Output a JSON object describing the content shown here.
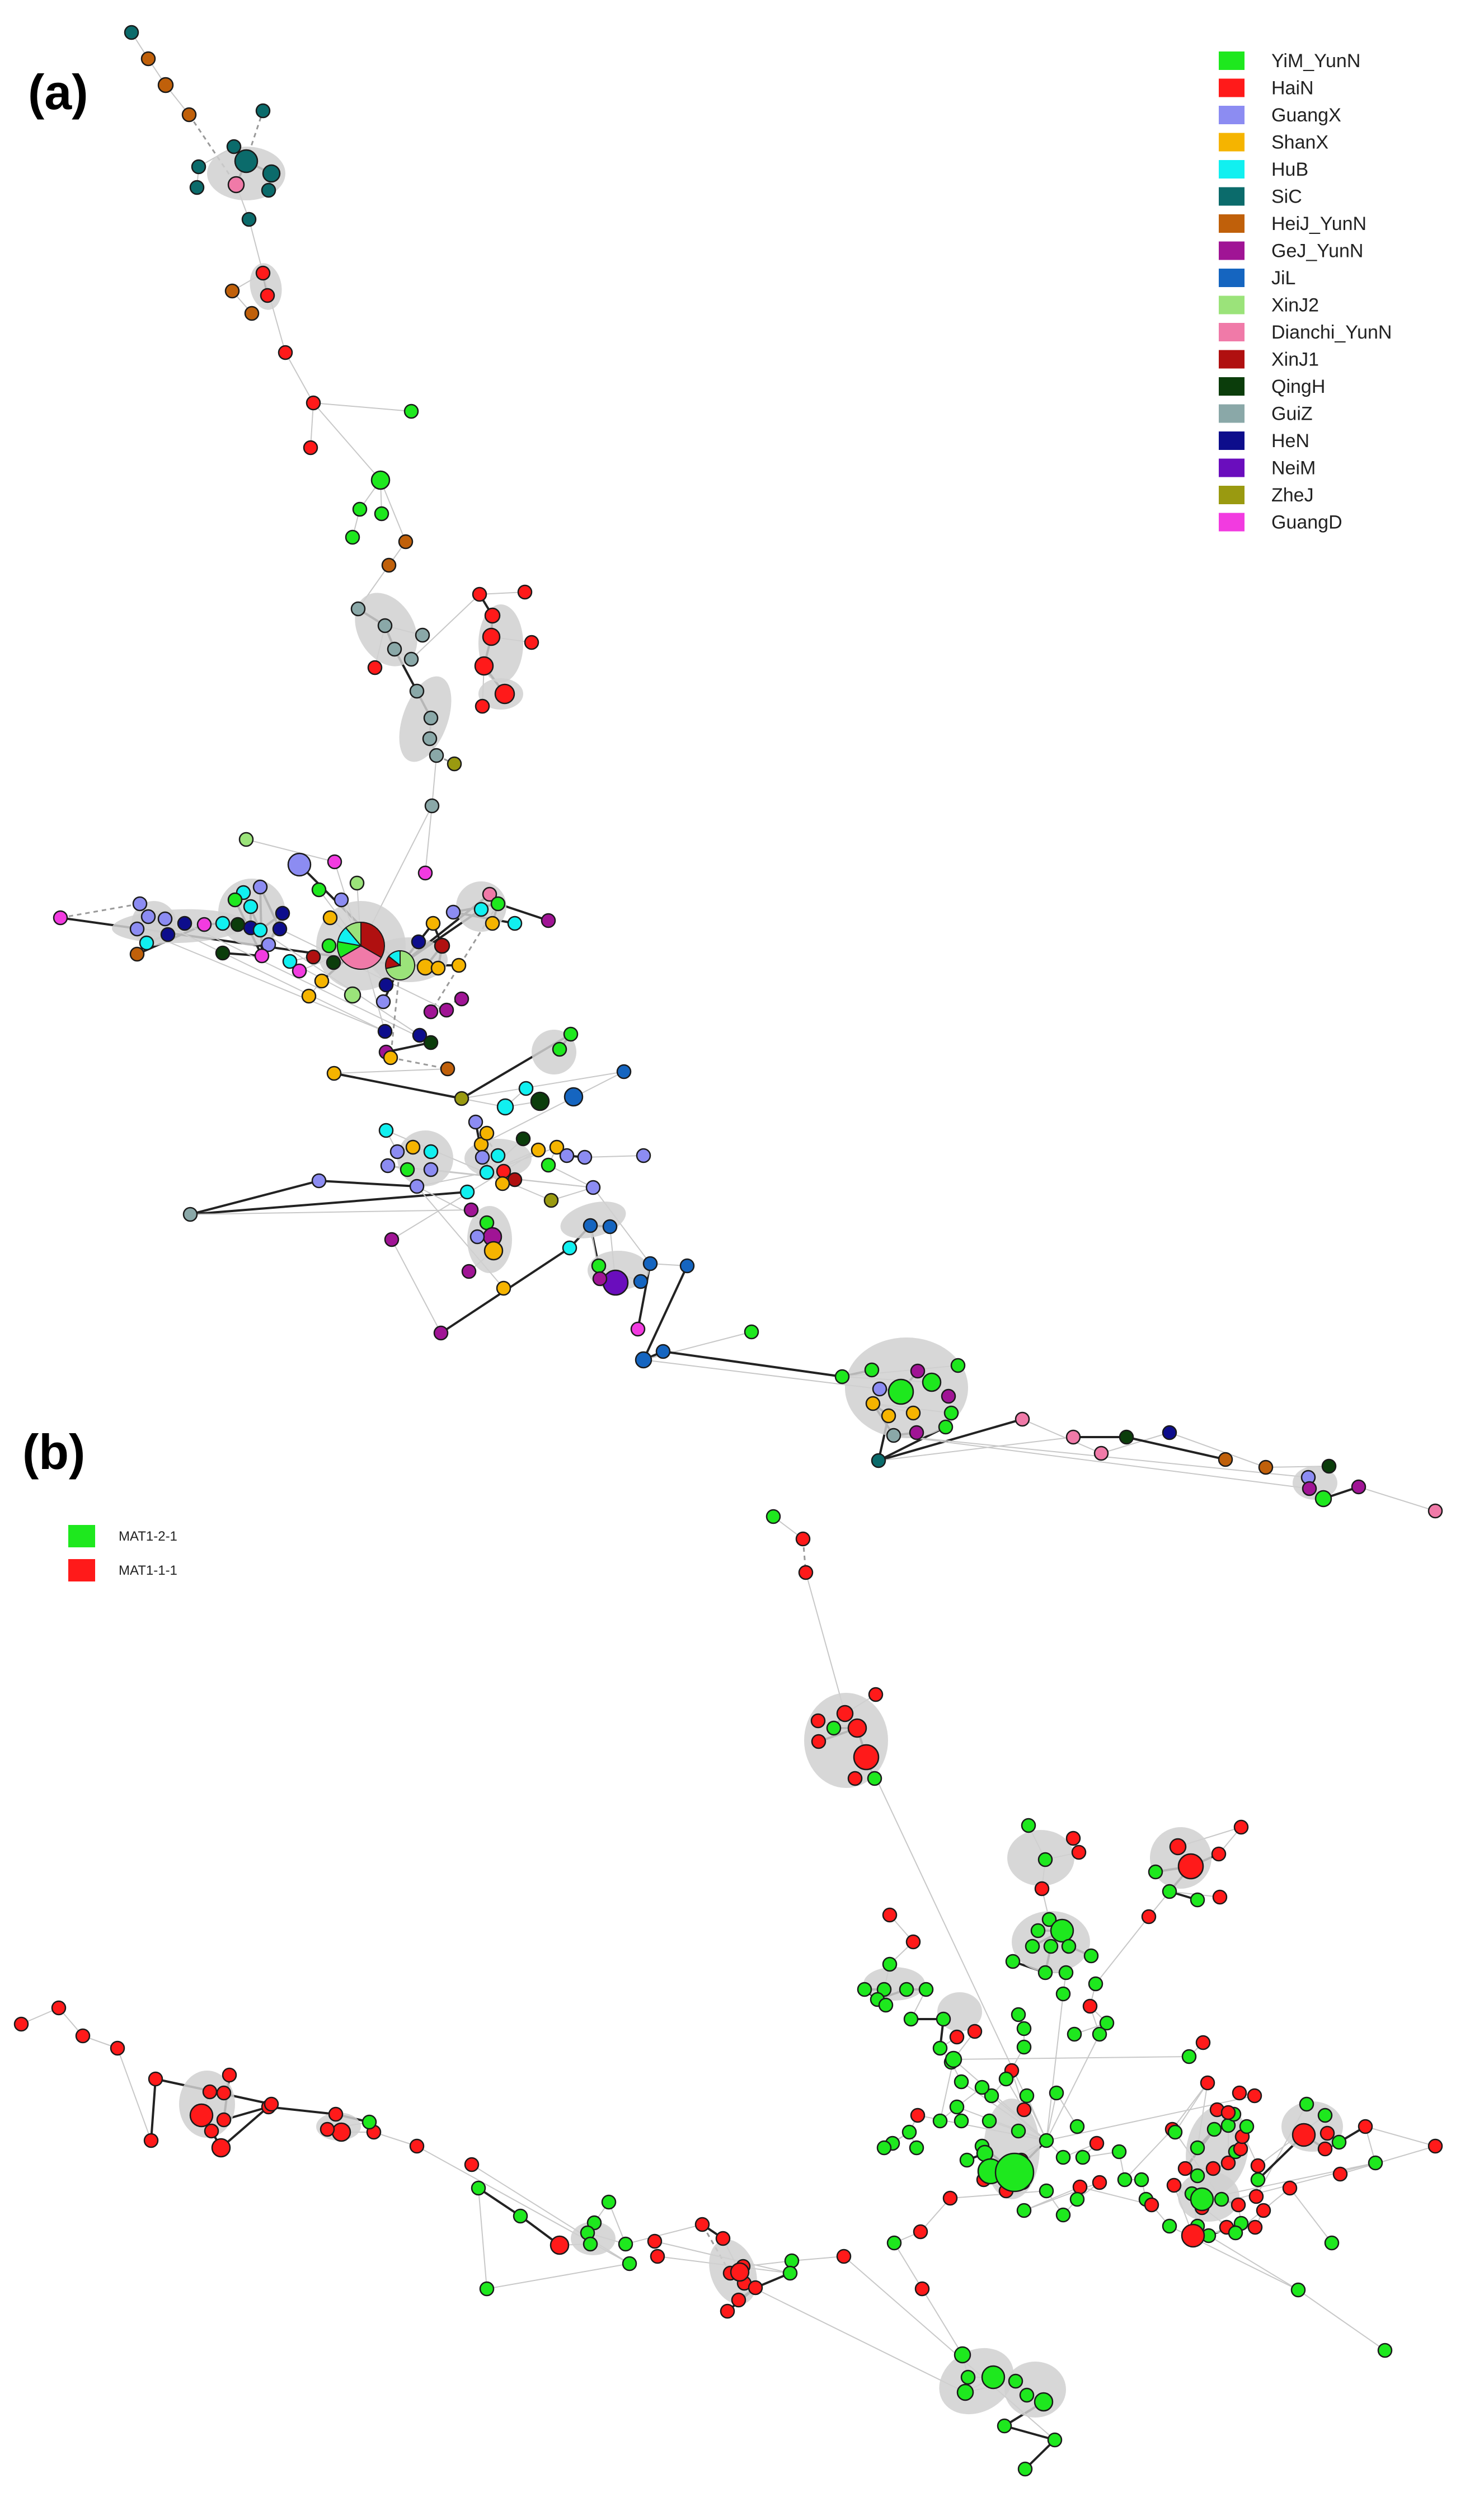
{
  "panel_a": {
    "label": "(a)",
    "legend": [
      {
        "name": "YiM_YunN",
        "color": "#1ee81e"
      },
      {
        "name": "HaiN",
        "color": "#ff1a1a"
      },
      {
        "name": "GuangX",
        "color": "#8c8cf2"
      },
      {
        "name": "ShanX",
        "color": "#f5b400"
      },
      {
        "name": "HuB",
        "color": "#11f0f0"
      },
      {
        "name": "SiC",
        "color": "#0b6b6b"
      },
      {
        "name": "HeiJ_YunN",
        "color": "#c0600a"
      },
      {
        "name": "GeJ_YunN",
        "color": "#a01495"
      },
      {
        "name": "JiL",
        "color": "#1565c0"
      },
      {
        "name": "XinJ2",
        "color": "#9be37a"
      },
      {
        "name": "Dianchi_YunN",
        "color": "#f07aa8"
      },
      {
        "name": "XinJ1",
        "color": "#b01010"
      },
      {
        "name": "QingH",
        "color": "#0b3d0b"
      },
      {
        "name": "GuiZ",
        "color": "#8aa8a8"
      },
      {
        "name": "HeN",
        "color": "#0d0d8c"
      },
      {
        "name": "NeiM",
        "color": "#6a0dbd"
      },
      {
        "name": "ZheJ",
        "color": "#9a9a10"
      },
      {
        "name": "GuangD",
        "color": "#f23be0"
      }
    ]
  },
  "panel_b": {
    "label": "(b)",
    "legend": [
      {
        "name": "MAT1-2-1",
        "color": "#1ee81e"
      },
      {
        "name": "MAT1-1-1",
        "color": "#ff1a1a"
      }
    ]
  }
}
